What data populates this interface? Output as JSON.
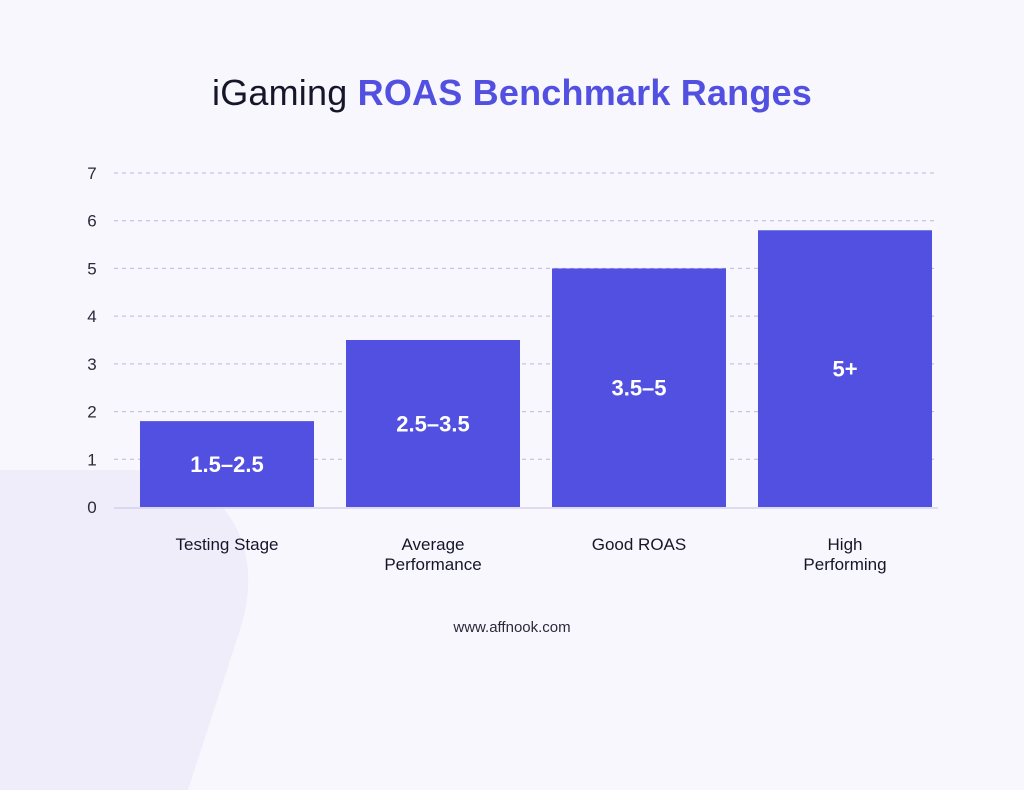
{
  "title": {
    "plain": "iGaming ",
    "accent": "ROAS Benchmark Ranges"
  },
  "footer": "www.affnook.com",
  "colors": {
    "bar": "#5250e1",
    "accent": "#5250e1",
    "grid": "#b9b7dc",
    "text": "#16162a"
  },
  "chart_data": {
    "type": "bar",
    "title": "iGaming ROAS Benchmark Ranges",
    "xlabel": "",
    "ylabel": "",
    "ylim": [
      0,
      7
    ],
    "yticks": [
      0,
      1,
      2,
      3,
      4,
      5,
      6,
      7
    ],
    "grid": true,
    "categories": [
      [
        "Testing Stage"
      ],
      [
        "Average",
        "Performance"
      ],
      [
        "Good ROAS"
      ],
      [
        "High",
        "Performing"
      ]
    ],
    "values": [
      1.8,
      3.5,
      5.0,
      5.8
    ],
    "data_labels": [
      "1.5–2.5",
      "2.5–3.5",
      "3.5–5",
      "5+"
    ]
  }
}
